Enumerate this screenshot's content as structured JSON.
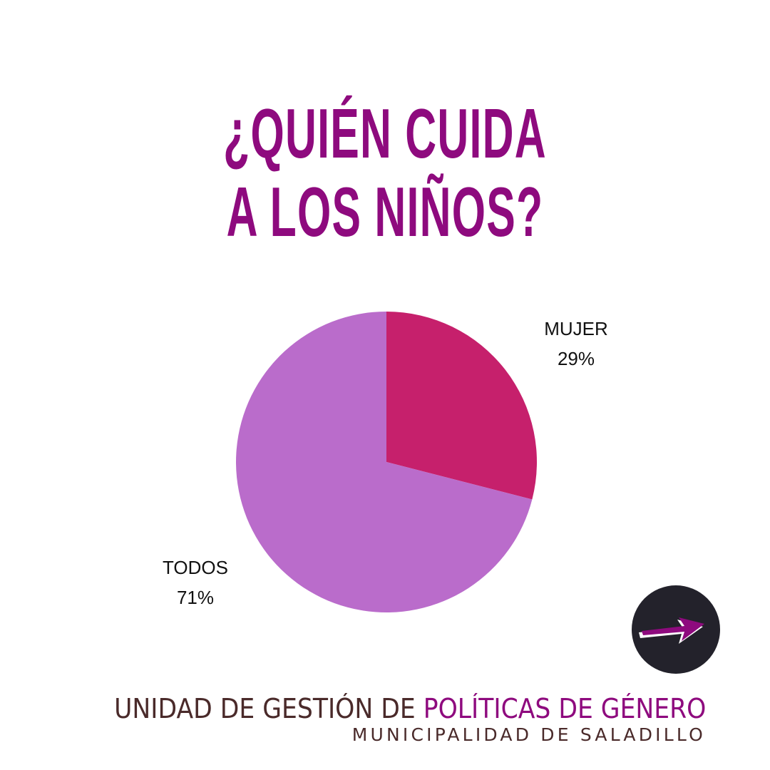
{
  "title": {
    "line1": "¿QUIÉN CUIDA",
    "line2": "A LOS NIÑOS?"
  },
  "chart_data": {
    "type": "pie",
    "title": "¿QUIÉN CUIDA A LOS NIÑOS?",
    "slices": [
      {
        "label": "MUJER",
        "value": 29,
        "value_label": "29%",
        "color": "#c6206c"
      },
      {
        "label": "TODOS",
        "value": 71,
        "value_label": "71%",
        "color": "#ba6ccb"
      }
    ],
    "start_angle": "12 o'clock",
    "direction": "clockwise",
    "legend": "none"
  },
  "footer": {
    "line1_part1": "UNIDAD DE GESTIÓN DE ",
    "line1_part2": "POLÍTICAS DE GÉNERO",
    "line2": "MUNICIPALIDAD DE SALADILLO"
  },
  "colors": {
    "accent": "#8e0a7e",
    "footer_text": "#4a2a2a",
    "logo_bg": "#23222b"
  },
  "logo": {
    "icon": "arrow-icon"
  }
}
